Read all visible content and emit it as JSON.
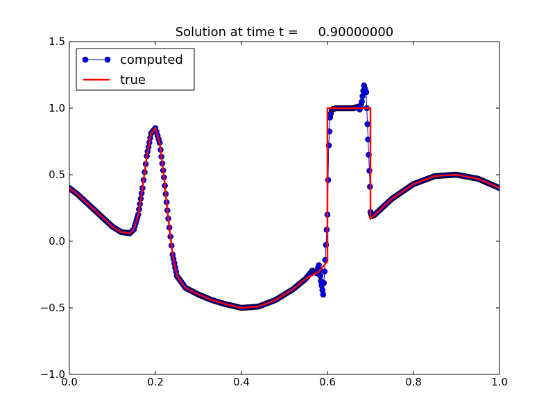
{
  "chart_data": {
    "type": "line",
    "title": "Solution at time t =     0.90000000",
    "xlabel": "",
    "ylabel": "",
    "xlim": [
      0.0,
      1.0
    ],
    "ylim": [
      -1.0,
      1.5
    ],
    "x_ticks": [
      0.0,
      0.2,
      0.4,
      0.6,
      0.8,
      1.0
    ],
    "x_tick_labels": [
      "0.0",
      "0.2",
      "0.4",
      "0.6",
      "0.8",
      "1.0"
    ],
    "y_ticks": [
      -1.0,
      -0.5,
      0.0,
      0.5,
      1.0,
      1.5
    ],
    "y_tick_labels": [
      "−1.0",
      "−0.5",
      "0.0",
      "0.5",
      "1.0",
      "1.5"
    ],
    "grid": false,
    "legend_position": "top-left",
    "series": [
      {
        "name": "computed",
        "style": "line-with-markers",
        "color": "#0000ff",
        "x": [
          0.0,
          0.02,
          0.04,
          0.06,
          0.08,
          0.1,
          0.12,
          0.14,
          0.15,
          0.16,
          0.17,
          0.18,
          0.19,
          0.2,
          0.21,
          0.22,
          0.23,
          0.24,
          0.25,
          0.27,
          0.3,
          0.33,
          0.36,
          0.4,
          0.44,
          0.48,
          0.52,
          0.55,
          0.565,
          0.575,
          0.58,
          0.585,
          0.59,
          0.595,
          0.6,
          0.603,
          0.606,
          0.61,
          0.62,
          0.64,
          0.66,
          0.67,
          0.675,
          0.68,
          0.685,
          0.69,
          0.693,
          0.696,
          0.699,
          0.7,
          0.703,
          0.71,
          0.75,
          0.8,
          0.85,
          0.9,
          0.95,
          1.0
        ],
        "y": [
          0.4,
          0.35,
          0.29,
          0.23,
          0.17,
          0.11,
          0.07,
          0.06,
          0.09,
          0.2,
          0.4,
          0.64,
          0.81,
          0.85,
          0.74,
          0.48,
          0.17,
          -0.1,
          -0.26,
          -0.35,
          -0.4,
          -0.44,
          -0.47,
          -0.5,
          -0.49,
          -0.44,
          -0.36,
          -0.28,
          -0.22,
          -0.24,
          -0.18,
          -0.3,
          -0.4,
          -0.14,
          0.2,
          0.72,
          0.93,
          0.99,
          1.0,
          1.0,
          1.0,
          1.01,
          0.99,
          1.05,
          1.17,
          1.12,
          0.88,
          0.65,
          0.41,
          0.22,
          0.19,
          0.2,
          0.32,
          0.43,
          0.49,
          0.5,
          0.47,
          0.4
        ]
      },
      {
        "name": "true",
        "style": "line",
        "color": "#ff0000",
        "x": [
          0.0,
          0.02,
          0.04,
          0.06,
          0.08,
          0.1,
          0.12,
          0.14,
          0.15,
          0.16,
          0.17,
          0.18,
          0.19,
          0.2,
          0.21,
          0.22,
          0.23,
          0.24,
          0.25,
          0.27,
          0.3,
          0.33,
          0.36,
          0.4,
          0.44,
          0.48,
          0.52,
          0.55,
          0.58,
          0.6,
          0.6,
          0.7,
          0.7,
          0.75,
          0.8,
          0.85,
          0.9,
          0.95,
          1.0
        ],
        "y": [
          0.4,
          0.35,
          0.29,
          0.23,
          0.17,
          0.11,
          0.07,
          0.06,
          0.09,
          0.2,
          0.4,
          0.64,
          0.81,
          0.85,
          0.74,
          0.48,
          0.17,
          -0.1,
          -0.26,
          -0.35,
          -0.4,
          -0.44,
          -0.47,
          -0.5,
          -0.49,
          -0.44,
          -0.36,
          -0.28,
          -0.23,
          -0.15,
          1.0,
          1.0,
          0.17,
          0.32,
          0.43,
          0.49,
          0.5,
          0.47,
          0.4
        ]
      }
    ]
  }
}
